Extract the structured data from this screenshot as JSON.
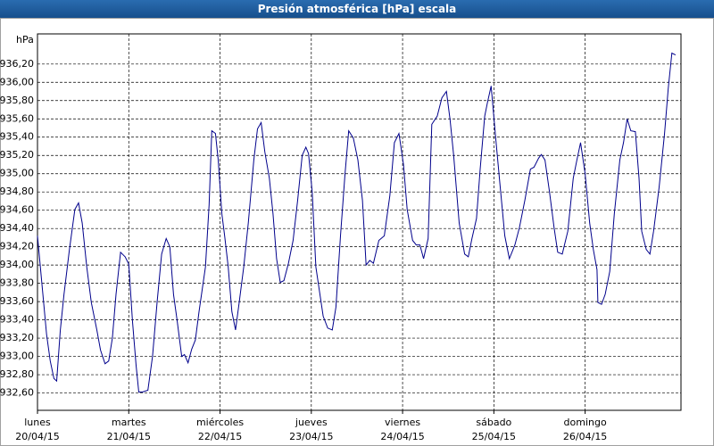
{
  "chart_data": {
    "type": "line",
    "title": "Presión atmosférica [hPa] escala",
    "y_label": "hPa",
    "xlim": [
      0,
      7.05
    ],
    "ylim": [
      932.41,
      936.53
    ],
    "xticks": [
      {
        "value": 0,
        "label": "lunes",
        "date": "20/04/15"
      },
      {
        "value": 1,
        "label": "martes",
        "date": "21/04/15"
      },
      {
        "value": 2,
        "label": "miércoles",
        "date": "22/04/15"
      },
      {
        "value": 3,
        "label": "jueves",
        "date": "23/04/15"
      },
      {
        "value": 4,
        "label": "viernes",
        "date": "24/04/15"
      },
      {
        "value": 5,
        "label": "sábado",
        "date": "25/04/15"
      },
      {
        "value": 6,
        "label": "domingo",
        "date": "26/04/15"
      }
    ],
    "yticks": [
      {
        "value": 932.6,
        "label": "932,60"
      },
      {
        "value": 932.8,
        "label": "932,80"
      },
      {
        "value": 933.0,
        "label": "933,00"
      },
      {
        "value": 933.2,
        "label": "933,20"
      },
      {
        "value": 933.4,
        "label": "933,40"
      },
      {
        "value": 933.6,
        "label": "933,60"
      },
      {
        "value": 933.8,
        "label": "933,80"
      },
      {
        "value": 934.0,
        "label": "934,00"
      },
      {
        "value": 934.2,
        "label": "934,20"
      },
      {
        "value": 934.4,
        "label": "934,40"
      },
      {
        "value": 934.6,
        "label": "934,60"
      },
      {
        "value": 934.8,
        "label": "934,80"
      },
      {
        "value": 935.0,
        "label": "935,00"
      },
      {
        "value": 935.2,
        "label": "935,20"
      },
      {
        "value": 935.4,
        "label": "935,40"
      },
      {
        "value": 935.6,
        "label": "935,60"
      },
      {
        "value": 935.8,
        "label": "935,80"
      },
      {
        "value": 936.0,
        "label": "936,00"
      },
      {
        "value": 936.2,
        "label": "936,20"
      }
    ],
    "grid": true,
    "series": [
      {
        "color": "#00008b",
        "x": [
          0,
          0.05,
          0.1,
          0.14,
          0.18,
          0.21,
          0.25,
          0.29,
          0.35,
          0.41,
          0.45,
          0.49,
          0.54,
          0.59,
          0.65,
          0.69,
          0.74,
          0.78,
          0.82,
          0.86,
          0.91,
          0.96,
          1.0,
          1.04,
          1.08,
          1.11,
          1.15,
          1.21,
          1.26,
          1.31,
          1.36,
          1.41,
          1.45,
          1.49,
          1.53,
          1.58,
          1.61,
          1.65,
          1.69,
          1.73,
          1.77,
          1.84,
          1.88,
          1.91,
          1.95,
          1.98,
          2.02,
          2.05,
          2.09,
          2.13,
          2.17,
          2.21,
          2.26,
          2.31,
          2.37,
          2.41,
          2.45,
          2.49,
          2.54,
          2.58,
          2.62,
          2.66,
          2.7,
          2.75,
          2.8,
          2.85,
          2.9,
          2.94,
          2.97,
          3.01,
          3.05,
          3.13,
          3.18,
          3.23,
          3.27,
          3.32,
          3.37,
          3.41,
          3.46,
          3.51,
          3.56,
          3.6,
          3.64,
          3.68,
          3.74,
          3.8,
          3.86,
          3.91,
          3.96,
          4.01,
          4.05,
          4.11,
          4.15,
          4.19,
          4.23,
          4.28,
          4.32,
          4.38,
          4.43,
          4.48,
          4.52,
          4.56,
          4.62,
          4.68,
          4.72,
          4.76,
          4.81,
          4.85,
          4.9,
          4.93,
          4.97,
          5.02,
          5.07,
          5.12,
          5.17,
          5.23,
          5.28,
          5.34,
          5.4,
          5.44,
          5.49,
          5.52,
          5.56,
          5.61,
          5.66,
          5.7,
          5.75,
          5.81,
          5.87,
          5.91,
          5.95,
          6.0,
          6.05,
          6.09,
          6.13,
          6.14,
          6.18,
          6.22,
          6.27,
          6.32,
          6.38,
          6.42,
          6.46,
          6.5,
          6.55,
          6.59,
          6.62,
          6.67,
          6.71,
          6.75,
          6.81,
          6.87,
          6.91,
          6.95,
          6.99
        ],
        "values": [
          934.32,
          933.78,
          933.24,
          932.95,
          932.76,
          932.73,
          933.29,
          933.68,
          934.17,
          934.61,
          934.68,
          934.46,
          933.98,
          933.59,
          933.29,
          933.07,
          932.92,
          932.95,
          933.2,
          933.68,
          934.14,
          934.09,
          934.01,
          933.39,
          932.9,
          932.61,
          932.61,
          932.63,
          933.0,
          933.59,
          934.12,
          934.29,
          934.2,
          933.68,
          933.39,
          933.0,
          933.02,
          932.93,
          933.08,
          933.18,
          933.49,
          933.98,
          934.66,
          935.47,
          935.44,
          935.15,
          934.56,
          934.32,
          933.98,
          933.49,
          933.29,
          933.59,
          933.98,
          934.46,
          935.15,
          935.49,
          935.56,
          935.24,
          934.95,
          934.56,
          934.07,
          933.81,
          933.83,
          934.02,
          934.27,
          934.71,
          935.2,
          935.29,
          935.22,
          934.8,
          933.98,
          933.44,
          933.31,
          933.29,
          933.54,
          934.32,
          935.0,
          935.47,
          935.39,
          935.15,
          934.71,
          934.0,
          934.05,
          934.02,
          934.27,
          934.32,
          934.76,
          935.34,
          935.44,
          935.1,
          934.61,
          934.27,
          934.22,
          934.22,
          934.07,
          934.29,
          935.54,
          935.63,
          935.83,
          935.9,
          935.59,
          935.2,
          934.46,
          934.12,
          934.09,
          934.29,
          934.51,
          935.05,
          935.63,
          935.78,
          935.96,
          935.39,
          934.85,
          934.32,
          934.07,
          934.22,
          934.41,
          934.71,
          935.05,
          935.07,
          935.17,
          935.21,
          935.15,
          934.8,
          934.41,
          934.14,
          934.12,
          934.37,
          934.95,
          935.15,
          935.34,
          935.0,
          934.46,
          934.17,
          933.95,
          933.59,
          933.57,
          933.68,
          933.93,
          934.56,
          935.15,
          935.34,
          935.6,
          935.47,
          935.46,
          934.95,
          934.37,
          934.17,
          934.12,
          934.37,
          934.85,
          935.44,
          935.93,
          936.32,
          936.3
        ]
      }
    ]
  }
}
